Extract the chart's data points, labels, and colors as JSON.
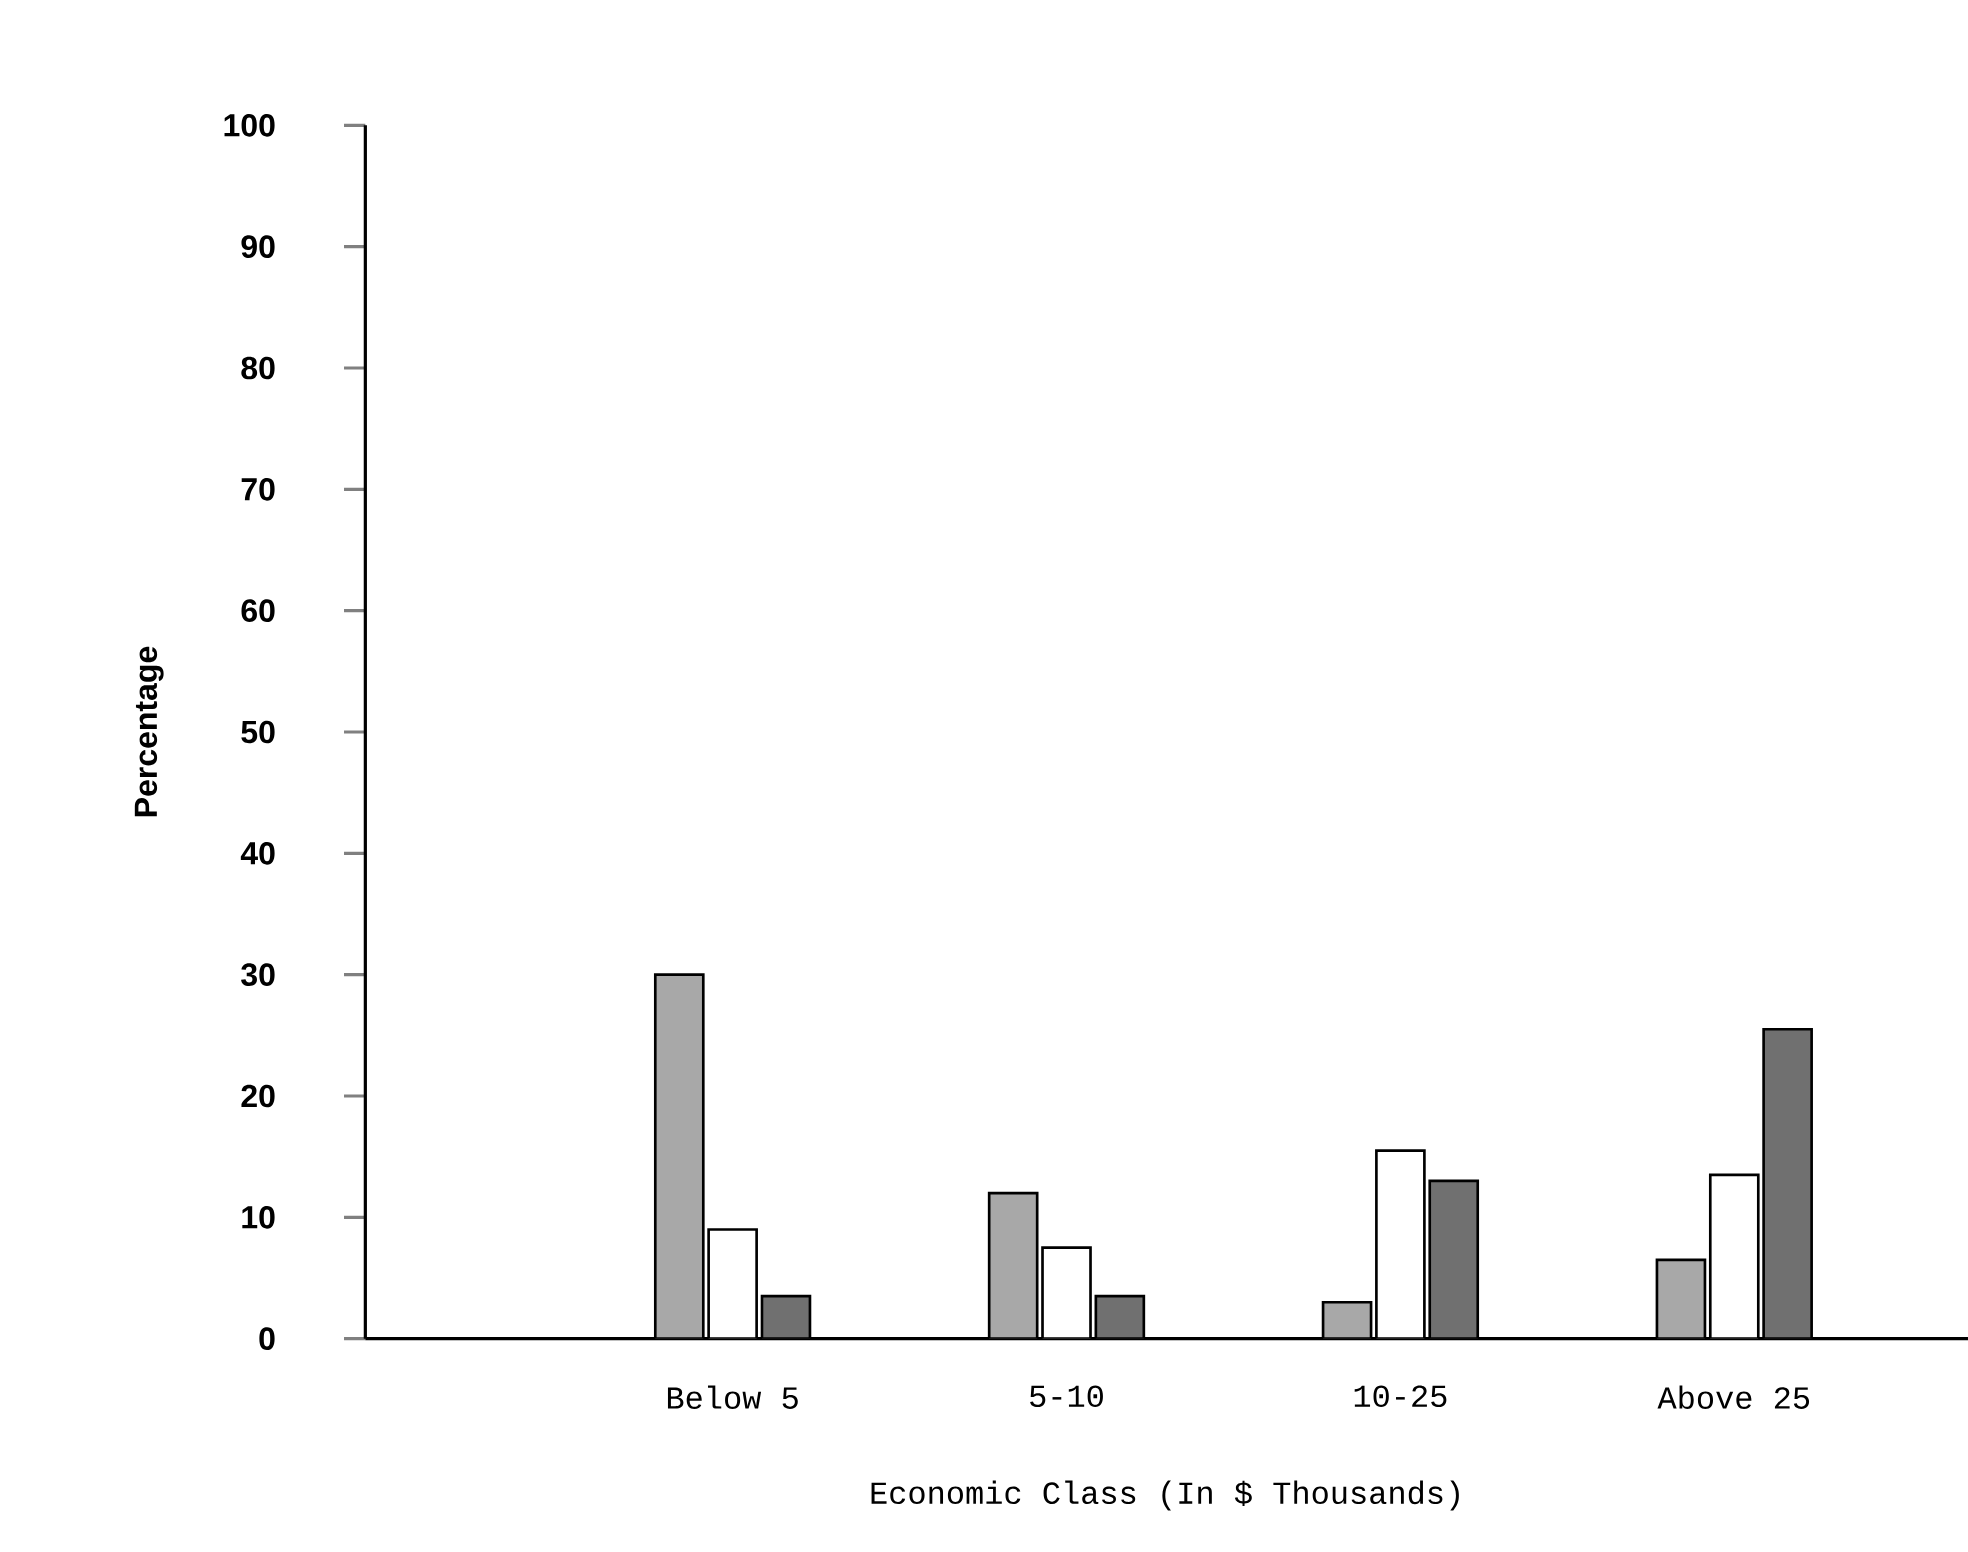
{
  "chart_data": {
    "type": "bar",
    "xlabel": "Economic Class (In $ Thousands)",
    "ylabel": "Percentage",
    "categories": [
      "Below 5",
      "5-10",
      "10-25",
      "Above 25"
    ],
    "series": [
      {
        "color": "#a8a8a8",
        "values": [
          30,
          12,
          3,
          6.5
        ]
      },
      {
        "color": "#ffffff",
        "values": [
          9,
          7.5,
          15.5,
          13.5
        ]
      },
      {
        "color": "#707070",
        "values": [
          3.5,
          3.5,
          13,
          25.5
        ]
      }
    ],
    "ylim": [
      0,
      100
    ],
    "yticks": [
      0,
      10,
      20,
      30,
      40,
      50,
      60,
      70,
      80,
      90,
      100
    ],
    "grid": false
  }
}
